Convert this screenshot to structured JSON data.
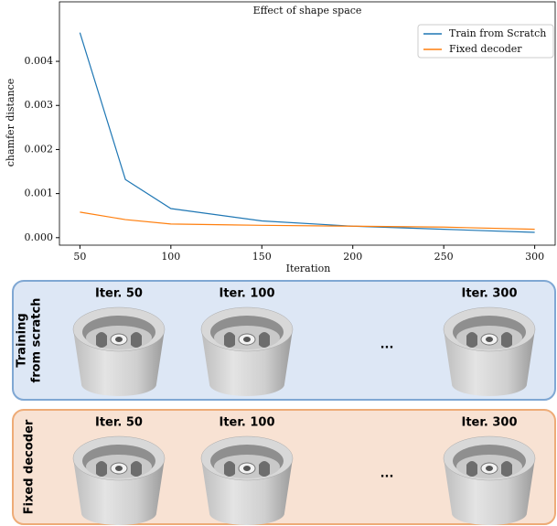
{
  "chart_data": {
    "type": "line",
    "title": "Effect of shape space",
    "x_label": "Iteration",
    "y_label": "chamfer distance",
    "x": [
      50,
      75,
      100,
      150,
      200,
      250,
      300
    ],
    "series": [
      {
        "name": "Train from Scratch",
        "color": "#1f77b4",
        "values": [
          0.00465,
          0.00132,
          0.00066,
          0.00038,
          0.00026,
          0.00019,
          0.00012
        ]
      },
      {
        "name": "Fixed decoder",
        "color": "#ff7f0e",
        "values": [
          0.00058,
          0.00041,
          0.00031,
          0.00028,
          0.00026,
          0.00024,
          0.00019
        ]
      }
    ],
    "xlim": [
      38.75,
      311.25
    ],
    "xticks": [
      50,
      100,
      150,
      200,
      250,
      300
    ],
    "ylim": [
      -0.00017,
      0.00535
    ],
    "yticks": [
      {
        "value": 0,
        "label": "0.000"
      },
      0.001,
      0.002,
      0.003,
      0.004
    ],
    "legend": "upper right"
  },
  "panels": [
    {
      "label_lines": [
        "Training",
        "from scratch"
      ],
      "iterations": [
        "Iter. 50",
        "Iter. 100",
        "Iter. 300"
      ],
      "ellipsis": "...",
      "color": "#dde7f5",
      "border": "#7fa7d3"
    },
    {
      "label_lines": [
        "Fixed decoder"
      ],
      "iterations": [
        "Iter. 50",
        "Iter. 100",
        "Iter. 300"
      ],
      "ellipsis": "...",
      "color": "#f8e2d3",
      "border": "#eeab77"
    }
  ]
}
